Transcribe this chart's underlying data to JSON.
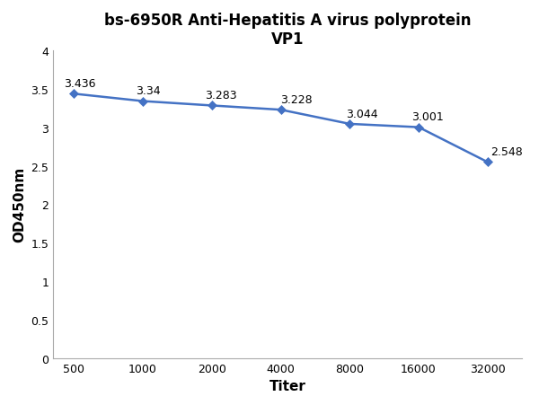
{
  "title_line1": "bs-6950R Anti-Hepatitis A virus polyprotein",
  "title_line2": "VP1",
  "xlabel": "Titer",
  "ylabel": "OD450nm",
  "x_positions": [
    0,
    1,
    2,
    3,
    4,
    5,
    6
  ],
  "y_values": [
    3.436,
    3.34,
    3.283,
    3.228,
    3.044,
    3.001,
    2.548
  ],
  "labels": [
    "3.436",
    "3.34",
    "3.283",
    "3.228",
    "3.044",
    "3.001",
    "2.548"
  ],
  "line_color": "#4472C4",
  "marker_color": "#4472C4",
  "ylim": [
    0,
    4
  ],
  "yticks": [
    0,
    0.5,
    1,
    1.5,
    2,
    2.5,
    3,
    3.5,
    4
  ],
  "ytick_labels": [
    "0",
    "0.5",
    "1",
    "1.5",
    "2",
    "2.5",
    "3",
    "3.5",
    "4"
  ],
  "xtick_labels": [
    "500",
    "1000",
    "2000",
    "4000",
    "8000",
    "16000",
    "32000"
  ],
  "background_color": "#ffffff",
  "title_fontsize": 12,
  "axis_label_fontsize": 11,
  "tick_fontsize": 9,
  "annotation_fontsize": 9,
  "line_width": 1.8,
  "marker_size": 5
}
